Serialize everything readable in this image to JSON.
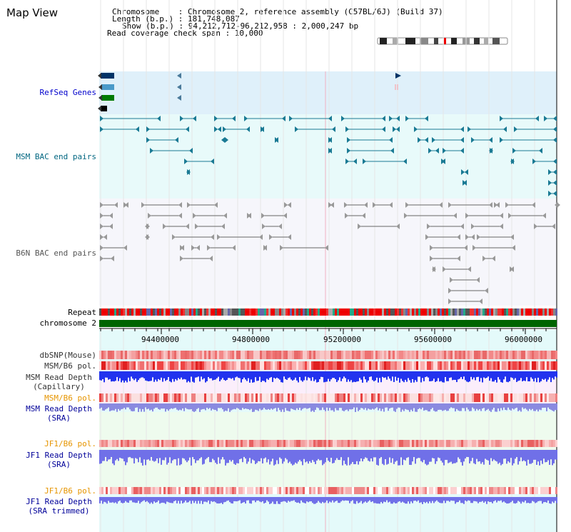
{
  "page_title": "Map View",
  "info": {
    "chromosome": "Chromosome    : Chromosome 2, reference assembly (C57BL/6J) (Build 37)",
    "length": "Length (b.p.) : 181,748,087",
    "show": "Show (b.p.) : 94,212,712-96,212,958 : 2,000,247 bp",
    "coverage": "Read coverage check span : 10,000"
  },
  "tracks": {
    "refseq": "RefSeq Genes",
    "msm_bac": "MSM BAC end pairs",
    "b6n_bac": "B6N BAC end pairs",
    "repeat": "Repeat",
    "chrom": "chromosome 2",
    "dbsnp": "dbSNP(Mouse)",
    "msm_b6_pol_1": "MSM/B6 pol.",
    "msm_depth_cap_1": "MSM Read Depth",
    "msm_depth_cap_2": "(Capillary)",
    "msm_b6_pol_2": "MSM/B6 pol.",
    "msm_depth_sra_1": "MSM Read Depth",
    "msm_depth_sra_2": "(SRA)",
    "jf1_pol_1": "JF1/B6 pol.",
    "jf1_depth_1": "JF1 Read Depth",
    "jf1_depth_2": "(SRA)",
    "jf1_pol_2": "JF1/B6 pol.",
    "jf1_trim_1": "JF1 Read Depth",
    "jf1_trim_2": "(SRA trimmed)"
  },
  "axis_ticks": [
    "94400000",
    "94800000",
    "95200000",
    "95600000",
    "96000000"
  ],
  "colors": {
    "refseq_bg": "#dff0fa",
    "msm_bg": "#e8fafa",
    "b6n_bg": "#f6f6fb",
    "depth_bg": "#e4fafa",
    "chrom_bar": "#006400",
    "refseq_text": "#0000cc",
    "msm_text": "#006680",
    "pol_orange": "#e69500",
    "depth_blue": "#000099"
  }
}
